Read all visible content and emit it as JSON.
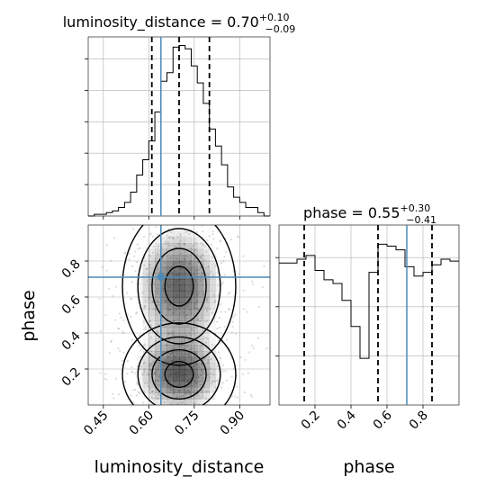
{
  "colors": {
    "truth": "#4a8ab8",
    "hist": "#000000",
    "grid": "#b0b0b0",
    "quantile": "#000000",
    "density_dark": "#1a1a1a"
  },
  "chart_data": [
    {
      "type": "histogram",
      "panel": "luminosity_distance marginal",
      "title_prefix": "luminosity_distance = 0.70",
      "title_sup": "+0.10",
      "title_sub": "−0.09",
      "x": [
        0.41,
        0.43,
        0.45,
        0.47,
        0.49,
        0.51,
        0.53,
        0.55,
        0.57,
        0.59,
        0.61,
        0.63,
        0.65,
        0.67,
        0.69,
        0.71,
        0.73,
        0.75,
        0.77,
        0.79,
        0.81,
        0.83,
        0.85,
        0.87,
        0.89,
        0.91,
        0.93,
        0.95,
        0.97,
        0.99
      ],
      "values": [
        0,
        1,
        1,
        2,
        3,
        5,
        8,
        14,
        24,
        33,
        44,
        61,
        79,
        84,
        99,
        100,
        98,
        88,
        78,
        66,
        51,
        41,
        30,
        17,
        11,
        8,
        5,
        5,
        2,
        0
      ],
      "xlim": [
        0.4,
        1.0
      ],
      "quantiles": [
        0.61,
        0.7,
        0.8
      ],
      "truth": 0.64
    },
    {
      "type": "heatmap",
      "panel": "joint luminosity_distance vs phase",
      "xlabel": "luminosity_distance",
      "ylabel": "phase",
      "xlim": [
        0.4,
        1.0
      ],
      "ylim": [
        0.0,
        1.0
      ],
      "xticks": [
        "0.45",
        "0.60",
        "0.75",
        "0.90"
      ],
      "xtick_values": [
        0.45,
        0.6,
        0.75,
        0.9
      ],
      "yticks": [
        "0.2",
        "0.4",
        "0.6",
        "0.8"
      ],
      "ytick_values": [
        0.2,
        0.4,
        0.6,
        0.8
      ],
      "truth": [
        0.64,
        0.71
      ],
      "modes": [
        {
          "x": 0.7,
          "y": 0.66,
          "sx": 0.085,
          "sy": 0.2
        },
        {
          "x": 0.7,
          "y": 0.17,
          "sx": 0.085,
          "sy": 0.13
        }
      ]
    },
    {
      "type": "histogram",
      "panel": "phase marginal",
      "title_prefix": "phase = 0.55",
      "title_sup": "+0.30",
      "title_sub": "−0.41",
      "x": [
        0.025,
        0.075,
        0.125,
        0.175,
        0.225,
        0.275,
        0.325,
        0.375,
        0.425,
        0.475,
        0.525,
        0.575,
        0.625,
        0.675,
        0.725,
        0.775,
        0.825,
        0.875,
        0.925,
        0.975
      ],
      "values": [
        76,
        76,
        78,
        80,
        72,
        67,
        65,
        56,
        42,
        25,
        71,
        86,
        85,
        83,
        74,
        69,
        71,
        75,
        78,
        77
      ],
      "xlim": [
        0.0,
        1.0
      ],
      "xticks": [
        "0.2",
        "0.4",
        "0.6",
        "0.8"
      ],
      "xtick_values": [
        0.2,
        0.4,
        0.6,
        0.8
      ],
      "xlabel": "phase",
      "quantiles": [
        0.14,
        0.55,
        0.85
      ],
      "truth": 0.71
    }
  ]
}
